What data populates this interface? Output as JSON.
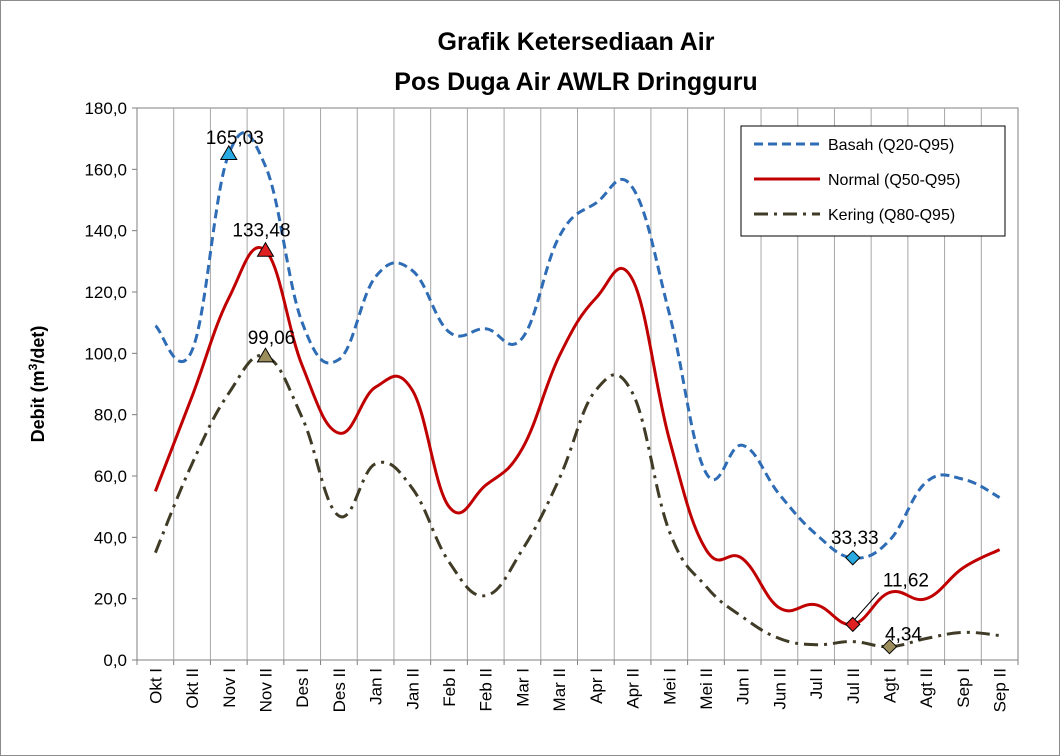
{
  "chart_data": {
    "type": "line",
    "title": "Grafik Ketersediaan Air",
    "subtitle": "Pos Duga Air AWLR Dringguru",
    "ylabel_main": "Debit",
    "ylabel_unit_a": "(m",
    "ylabel_unit_sup": "3",
    "ylabel_unit_b": "/det)",
    "xlabel": "",
    "ylim": [
      0,
      180
    ],
    "ytick_step": 20,
    "ytick_labels": [
      "0,0",
      "20,0",
      "40,0",
      "60,0",
      "80,0",
      "100,0",
      "120,0",
      "140,0",
      "160,0",
      "180,0"
    ],
    "grid": "vertical",
    "legend_position": "top-right",
    "categories": [
      "Okt I",
      "Okt II",
      "Nov I",
      "Nov II",
      "Des I",
      "Des II",
      "Jan I",
      "Jan II",
      "Feb I",
      "Feb II",
      "Mar I",
      "Mar II",
      "Apr I",
      "Apr II",
      "Mei I",
      "Mei II",
      "Jun I",
      "Jun II",
      "Jul I",
      "Jul II",
      "Agt I",
      "Agt II",
      "Sep I",
      "Sep II"
    ],
    "series": [
      {
        "name": "Basah (Q20-Q95)",
        "color": "#2e6cb5",
        "dash": "dashed",
        "values": [
          109,
          101,
          165.03,
          161,
          110,
          98,
          125,
          127,
          107,
          108,
          105,
          138,
          149,
          154,
          113,
          61,
          70,
          54,
          41,
          33.33,
          39,
          58,
          59,
          53
        ]
      },
      {
        "name": "Normal (Q50-Q95)",
        "color": "#c00000",
        "dash": "solid",
        "values": [
          55,
          86,
          118,
          133.48,
          96,
          74,
          89,
          88,
          50,
          57,
          69,
          99,
          118,
          124,
          72,
          36,
          33,
          17,
          18,
          11.62,
          22,
          20,
          30,
          36
        ]
      },
      {
        "name": "Kering (Q80-Q95)",
        "color": "#403b26",
        "dash": "dashdot",
        "values": [
          35,
          64,
          87,
          99.06,
          79,
          47,
          64,
          56,
          32,
          21,
          36,
          59,
          88,
          87,
          42,
          24,
          14,
          7,
          5,
          6,
          4.34,
          7,
          9,
          8
        ]
      }
    ],
    "annotations": [
      {
        "label": "165,03",
        "series": 0,
        "index": 2,
        "marker": "triangle",
        "color": "#29abe2"
      },
      {
        "label": "133,48",
        "series": 1,
        "index": 3,
        "marker": "triangle",
        "color": "#e02020"
      },
      {
        "label": "99,06",
        "series": 2,
        "index": 3,
        "marker": "triangle",
        "color": "#9c8d5c"
      },
      {
        "label": "33,33",
        "series": 0,
        "index": 19,
        "marker": "diamond",
        "color": "#29abe2"
      },
      {
        "label": "11,62",
        "series": 1,
        "index": 19,
        "marker": "diamond",
        "color": "#e02020"
      },
      {
        "label": "4,34",
        "series": 2,
        "index": 20,
        "marker": "diamond",
        "color": "#9c8d5c"
      }
    ]
  }
}
